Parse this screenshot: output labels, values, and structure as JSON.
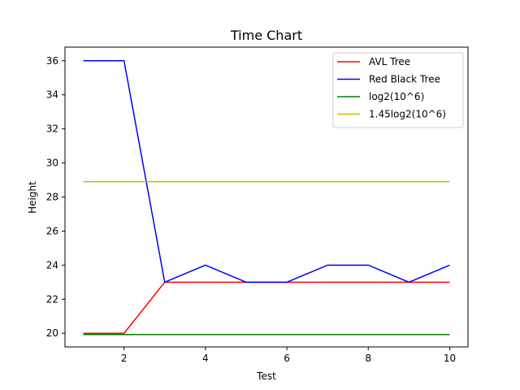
{
  "chart_data": {
    "type": "line",
    "title": "Time Chart",
    "xlabel": "Test",
    "ylabel": "Height",
    "xlim": [
      0.55,
      10.45
    ],
    "ylim": [
      19.2,
      36.8
    ],
    "x_ticks": [
      2,
      4,
      6,
      8,
      10
    ],
    "y_ticks": [
      20,
      22,
      24,
      26,
      28,
      30,
      32,
      34,
      36
    ],
    "grid": false,
    "legend_position": "upper right",
    "x": [
      1,
      2,
      3,
      4,
      5,
      6,
      7,
      8,
      9,
      10
    ],
    "series": [
      {
        "name": "AVL Tree",
        "color": "#ff0000",
        "values": [
          20,
          20,
          23,
          23,
          23,
          23,
          23,
          23,
          23,
          23
        ]
      },
      {
        "name": "Red Black Tree",
        "color": "#0000ff",
        "values": [
          36,
          36,
          23,
          24,
          23,
          23,
          24,
          24,
          23,
          24
        ]
      },
      {
        "name": "log2(10^6)",
        "color": "#008000",
        "values": [
          19.93,
          19.93,
          19.93,
          19.93,
          19.93,
          19.93,
          19.93,
          19.93,
          19.93,
          19.93
        ]
      },
      {
        "name": "1.45log2(10^6)",
        "color": "#bfbf00",
        "values": [
          28.9,
          28.9,
          28.9,
          28.9,
          28.9,
          28.9,
          28.9,
          28.9,
          28.9,
          28.9
        ]
      }
    ]
  }
}
